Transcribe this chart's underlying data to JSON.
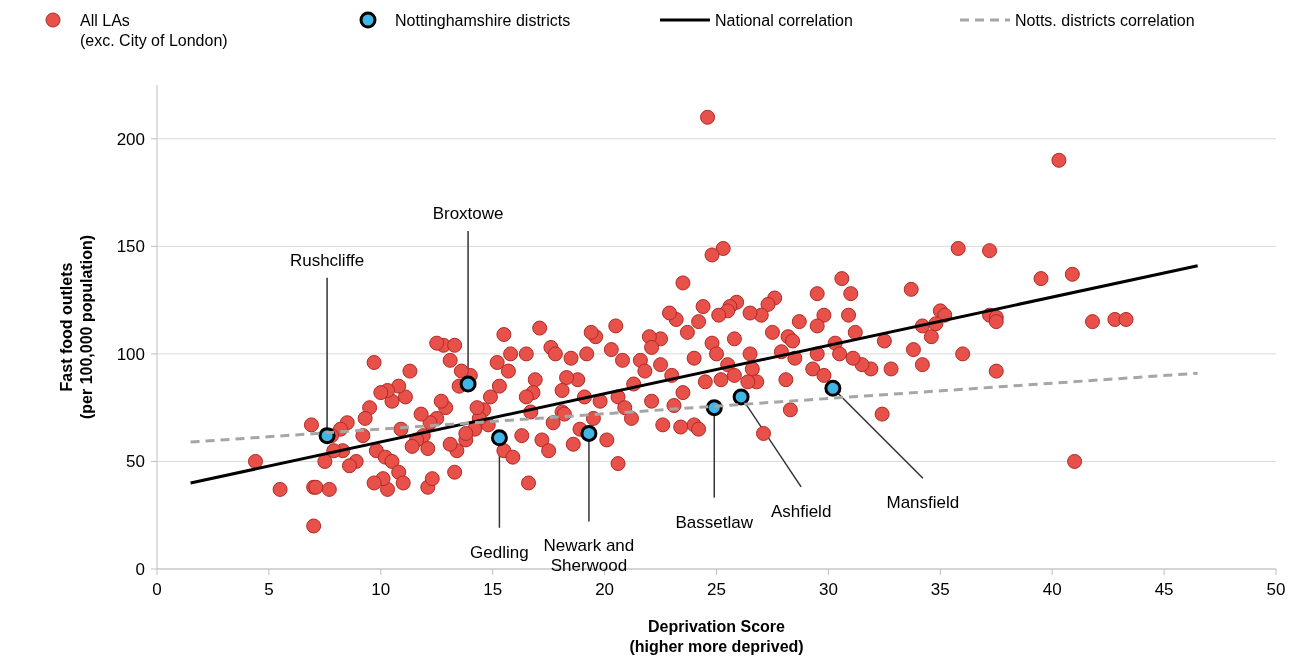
{
  "chart_data": {
    "type": "scatter",
    "xlabel": "Deprivation Score\n(higher more deprived)",
    "ylabel": "Fast food outlets\n(per 100,000  population)",
    "xlim": [
      0,
      50
    ],
    "xticks": [
      0,
      5,
      10,
      15,
      20,
      25,
      30,
      35,
      40,
      45,
      50
    ],
    "ylim": [
      0,
      225
    ],
    "yticks": [
      0,
      50,
      100,
      150,
      200
    ],
    "grid": "y",
    "legend": "top",
    "series": [
      {
        "name": "All LAs\n(exc. City of London)",
        "color": "#e8504a",
        "marker": "circle",
        "x": [
          4.4,
          5.5,
          7,
          7.1,
          7,
          7.7,
          6.9,
          24.6,
          40.3,
          40.9,
          41,
          41.8,
          42.8,
          43.3,
          39.5,
          37.2,
          35.8,
          36,
          37.5,
          37.2,
          37.5,
          37.5,
          33.7,
          33.8,
          34.2,
          34.2,
          34.6,
          35,
          35.2,
          32.5,
          32.4,
          31.9,
          30.6,
          31,
          30.3,
          30.5,
          30.9,
          31.2,
          31.5,
          29.5,
          29.8,
          29.5,
          29.5,
          29.3,
          28.5,
          28.2,
          28.4,
          28.1,
          28.3,
          27.6,
          27.3,
          27.5,
          27,
          26.5,
          26.6,
          26.8,
          26.4,
          27.1,
          25.9,
          25.6,
          25.8,
          25.3,
          24.8,
          25.5,
          25.1,
          24.4,
          24.2,
          24,
          24.8,
          25,
          25.5,
          25.8,
          25.2,
          24.5,
          23.5,
          23.7,
          23.2,
          22.9,
          22.5,
          22.5,
          23,
          23.5,
          23.1,
          22.6,
          24,
          24.2,
          23.4,
          22,
          22.1,
          21.6,
          21.8,
          21.3,
          20.8,
          20.6,
          20.9,
          20.5,
          20.3,
          20.6,
          19.6,
          19.4,
          19.2,
          18.8,
          19.8,
          19.5,
          20.1,
          18.3,
          18.1,
          18.5,
          17.6,
          17.8,
          17.1,
          16.9,
          16.8,
          16.5,
          16.7,
          16.3,
          16.5,
          15.8,
          15.5,
          15.2,
          15.7,
          15.3,
          14.9,
          14.6,
          14.8,
          15.5,
          15.9,
          16.6,
          17.2,
          17.7,
          18.1,
          18.6,
          18.9,
          14.4,
          14.2,
          13.8,
          13.4,
          14,
          13.6,
          12.8,
          13.3,
          13.1,
          12.5,
          12.9,
          12.5,
          12.2,
          11.9,
          11.6,
          11.3,
          11.1,
          10.8,
          10.5,
          10.3,
          10,
          9.7,
          9.5,
          9.3,
          9.2,
          9.8,
          10.2,
          10.5,
          10.8,
          11,
          10.3,
          10.1,
          9.7,
          12.1,
          12.3,
          11.4,
          8.9,
          8.6,
          8.3,
          8.5,
          8.2,
          7.8,
          7.9,
          7.5,
          10.9,
          11.8,
          12.7,
          13.3,
          13.5,
          14.3,
          12.1,
          13.1,
          13.8,
          17.5,
          18.2,
          19.1,
          21.2,
          22.1,
          26.5,
          27.9,
          28.7,
          29.8,
          31.1,
          32.8,
          34.8
        ],
        "values": [
          50,
          37,
          38,
          38,
          20,
          37,
          67,
          210,
          190,
          137,
          50,
          115,
          116,
          116,
          135,
          148,
          149,
          100,
          92,
          118,
          117,
          115,
          130,
          102,
          113,
          95,
          108,
          120,
          118,
          106,
          72,
          93,
          135,
          128,
          105,
          100,
          118,
          110,
          95,
          128,
          118,
          113,
          100,
          93,
          98,
          108,
          106,
          88,
          74,
          126,
          123,
          110,
          118,
          119,
          93,
          87,
          87,
          63,
          124,
          122,
          107,
          149,
          146,
          120,
          118,
          122,
          115,
          98,
          105,
          100,
          95,
          90,
          88,
          87,
          133,
          110,
          116,
          119,
          107,
          95,
          90,
          82,
          76,
          67,
          67,
          65,
          66,
          108,
          103,
          97,
          92,
          86,
          97,
          80,
          75,
          113,
          102,
          49,
          108,
          110,
          100,
          88,
          78,
          70,
          60,
          89,
          83,
          98,
          103,
          100,
          112,
          88,
          82,
          80,
          73,
          62,
          100,
          100,
          109,
          96,
          92,
          85,
          80,
          74,
          67,
          55,
          52,
          40,
          60,
          68,
          73,
          58,
          65,
          70,
          65,
          60,
          55,
          90,
          92,
          104,
          104,
          97,
          105,
          75,
          70,
          68,
          62,
          60,
          92,
          80,
          85,
          78,
          83,
          82,
          96,
          75,
          70,
          62,
          55,
          52,
          50,
          45,
          40,
          37,
          42,
          40,
          38,
          42,
          57,
          50,
          48,
          55,
          68,
          65,
          62,
          55,
          50,
          65,
          72,
          78,
          45,
          85,
          75,
          56,
          58,
          63,
          55,
          72,
          80,
          70,
          78,
          100,
          101,
          115,
          90,
          98,
          93,
          114
        ]
      },
      {
        "name": "Nottinghamshire districts",
        "color": "#41b6e6",
        "marker": "circle",
        "x": [
          7.6,
          13.9,
          15.3,
          19.3,
          24.9,
          26.1,
          30.2
        ],
        "values": [
          62,
          86,
          61,
          63,
          75,
          80,
          84
        ]
      },
      {
        "name": "National correlation",
        "type": "line",
        "color": "#000000",
        "line_style": "solid",
        "x": [
          1.5,
          46.5
        ],
        "values": [
          40,
          141
        ]
      },
      {
        "name": "Notts. districts correlation",
        "type": "line",
        "color": "#a6a6a6",
        "line_style": "dashed",
        "x": [
          1.5,
          46.5
        ],
        "values": [
          59,
          91
        ]
      }
    ],
    "annotations": [
      {
        "text": "Rushcliffe",
        "x": 7.6,
        "y": 62
      },
      {
        "text": "Broxtowe",
        "x": 13.9,
        "y": 86
      },
      {
        "text": "Gedling",
        "x": 15.3,
        "y": 61
      },
      {
        "text": "Newark and\nSherwood",
        "x": 19.3,
        "y": 63
      },
      {
        "text": "Bassetlaw",
        "x": 24.9,
        "y": 75
      },
      {
        "text": "Ashfield",
        "x": 26.1,
        "y": 80
      },
      {
        "text": "Mansfield",
        "x": 30.2,
        "y": 84
      }
    ]
  }
}
